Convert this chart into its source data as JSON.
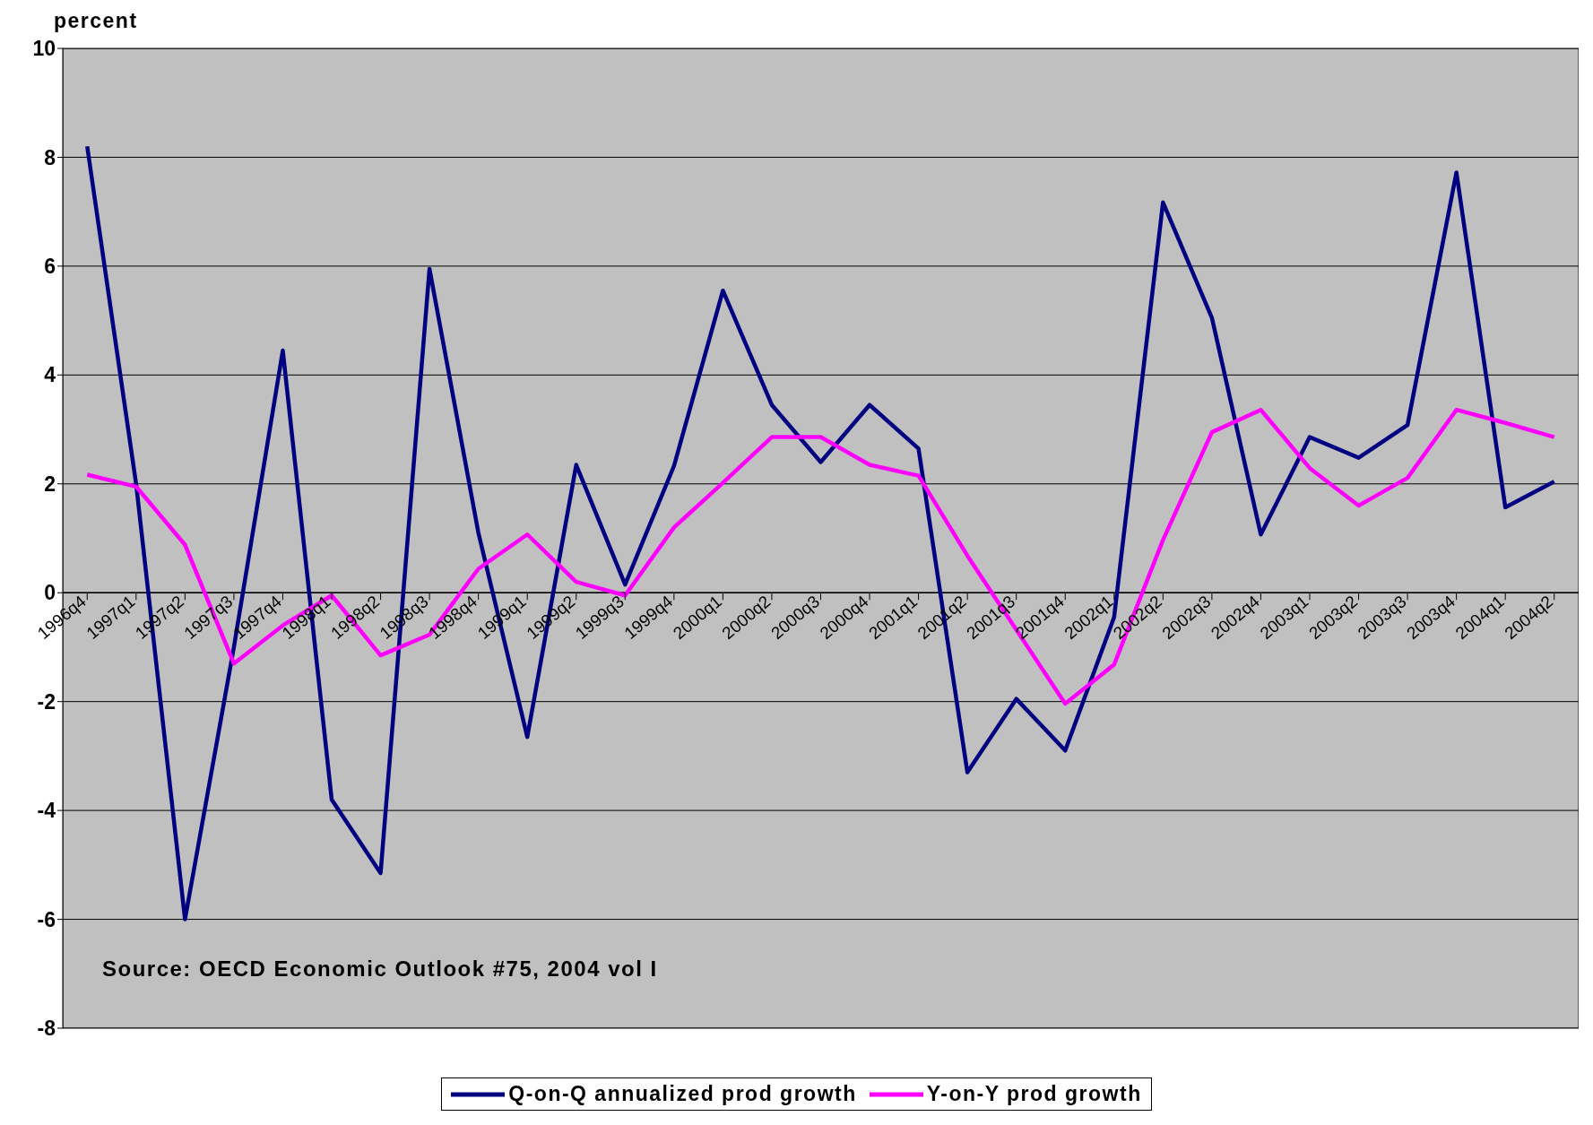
{
  "chart_data": {
    "type": "line",
    "ylabel": "percent",
    "categories": [
      "1996q4",
      "1997q1",
      "1997q2",
      "1997q3",
      "1997q4",
      "1998q1",
      "1998q2",
      "1998q3",
      "1998q4",
      "1999q1",
      "1999q2",
      "1999q3",
      "1999q4",
      "2000q1",
      "2000q2",
      "2000q3",
      "2000q4",
      "2001q1",
      "2001q2",
      "2001q3",
      "2001q4",
      "2002q1",
      "2002q2",
      "2002q3",
      "2002q4",
      "2003q1",
      "2003q2",
      "2003q3",
      "2003q4",
      "2004q1",
      "2004q2"
    ],
    "series": [
      {
        "name": "Q-on-Q annualized prod growth",
        "color": "#000080",
        "values": [
          8.2,
          2.0,
          -6.0,
          -1.0,
          4.45,
          -3.8,
          -5.15,
          5.95,
          1.1,
          -2.65,
          2.35,
          0.15,
          2.33,
          5.55,
          3.45,
          2.4,
          3.45,
          2.65,
          -3.3,
          -1.95,
          -2.9,
          -0.45,
          7.17,
          5.05,
          1.07,
          2.86,
          2.48,
          3.08,
          7.72,
          1.57,
          2.04
        ]
      },
      {
        "name": "Y-on-Y prod growth",
        "color": "#ff00ff",
        "values": [
          2.17,
          1.95,
          0.88,
          -1.3,
          -0.6,
          -0.05,
          -1.15,
          -0.77,
          0.44,
          1.07,
          0.2,
          -0.05,
          1.2,
          2.02,
          2.86,
          2.86,
          2.35,
          2.15,
          0.68,
          -0.68,
          -2.04,
          -1.32,
          0.97,
          2.95,
          3.36,
          2.29,
          1.6,
          2.11,
          3.36,
          3.12,
          2.86
        ]
      }
    ],
    "ylim": [
      -8,
      10
    ],
    "yticks": [
      -8,
      -6,
      -4,
      -2,
      0,
      2,
      4,
      6,
      8,
      10
    ],
    "grid": "y",
    "legend": "bottom",
    "marker": "none",
    "line_style": "solid",
    "annotations": [
      "Source: OECD Economic Outlook #75, 2004 vol I"
    ]
  }
}
